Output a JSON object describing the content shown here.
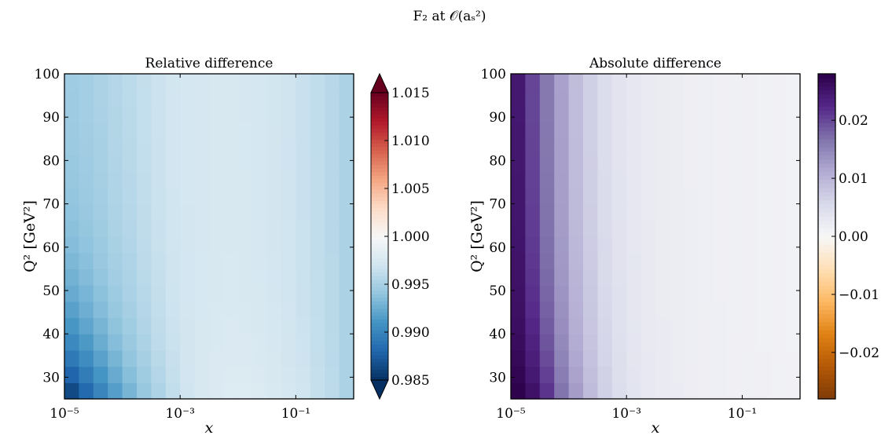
{
  "figure": {
    "suptitle": "F₂ at 𝒪(aₛ²)"
  },
  "chart_data": [
    {
      "type": "heatmap",
      "title": "Relative difference",
      "xlabel": "x",
      "ylabel": "Q² [GeV²]",
      "x_scale": "log",
      "xlim": [
        1e-05,
        1
      ],
      "ylim": [
        25,
        100
      ],
      "x_ticks": [
        {
          "value": 1e-05,
          "label": "10⁻⁵"
        },
        {
          "value": 0.001,
          "label": "10⁻³"
        },
        {
          "value": 0.1,
          "label": "10⁻¹"
        }
      ],
      "y_ticks": [
        30,
        40,
        50,
        60,
        70,
        80,
        90,
        100
      ],
      "colormap": "RdBu_r",
      "colorbar": {
        "vmin": 0.985,
        "vmax": 1.015,
        "extend": "both",
        "ticks": [
          "0.985",
          "0.990",
          "0.995",
          "1.000",
          "1.005",
          "1.010",
          "1.015"
        ]
      },
      "grid": {
        "x_log_edges": [
          -5,
          -4.75,
          -4.5,
          -4.25,
          -4,
          -3.75,
          -3.5,
          -3.25,
          -3,
          -2.75,
          -2.5,
          -2.25,
          -2,
          -1.75,
          -1.5,
          -1.25,
          -1,
          -0.75,
          -0.5,
          -0.25,
          0
        ],
        "y_edges": [
          25,
          28.75,
          32.5,
          36.25,
          40,
          43.75,
          47.5,
          51.25,
          55,
          58.75,
          62.5,
          66.25,
          70,
          73.75,
          77.5,
          81.25,
          85,
          88.75,
          92.5,
          96.25,
          100
        ],
        "values_low_q": [
          0.9855,
          0.9875,
          0.9895,
          0.9912,
          0.9927,
          0.994,
          0.9952,
          0.9962,
          0.997,
          0.9975,
          0.9978,
          0.998,
          0.998,
          0.9979,
          0.9977,
          0.9974,
          0.997,
          0.9965,
          0.996,
          0.9952
        ],
        "values_high_q": [
          0.9948,
          0.995,
          0.9953,
          0.9957,
          0.996,
          0.9964,
          0.9968,
          0.9971,
          0.9973,
          0.9974,
          0.9975,
          0.9975,
          0.9974,
          0.9973,
          0.9971,
          0.9969,
          0.9966,
          0.9962,
          0.9958,
          0.9952
        ],
        "q_transition_decay": 18
      }
    },
    {
      "type": "heatmap",
      "title": "Absolute difference",
      "xlabel": "x",
      "ylabel": "Q² [GeV²]",
      "x_scale": "log",
      "xlim": [
        1e-05,
        1
      ],
      "ylim": [
        25,
        100
      ],
      "x_ticks": [
        {
          "value": 1e-05,
          "label": "10⁻⁵"
        },
        {
          "value": 0.001,
          "label": "10⁻³"
        },
        {
          "value": 0.1,
          "label": "10⁻¹"
        }
      ],
      "y_ticks": [
        30,
        40,
        50,
        60,
        70,
        80,
        90,
        100
      ],
      "colormap": "PuOr",
      "colorbar": {
        "vmin": -0.028,
        "vmax": 0.028,
        "extend": "neither",
        "ticks": [
          "−0.02",
          "−0.01",
          "0.00",
          "0.01",
          "0.02"
        ],
        "tick_values": [
          -0.02,
          -0.01,
          0.0,
          0.01,
          0.02
        ]
      },
      "grid": {
        "x_log_edges": [
          -5,
          -4.75,
          -4.5,
          -4.25,
          -4,
          -3.75,
          -3.5,
          -3.25,
          -3,
          -2.75,
          -2.5,
          -2.25,
          -2,
          -1.75,
          -1.5,
          -1.25,
          -1,
          -0.75,
          -0.5,
          -0.25,
          0
        ],
        "y_edges": [
          25,
          28.75,
          32.5,
          36.25,
          40,
          43.75,
          47.5,
          51.25,
          55,
          58.75,
          62.5,
          66.25,
          70,
          73.75,
          77.5,
          81.25,
          85,
          88.75,
          92.5,
          96.25,
          100
        ],
        "values_low_q": [
          0.028,
          0.026,
          0.022,
          0.017,
          0.013,
          0.0095,
          0.007,
          0.005,
          0.0038,
          0.003,
          0.0025,
          0.0021,
          0.0019,
          0.0017,
          0.0016,
          0.0015,
          0.0014,
          0.0013,
          0.0012,
          0.0011
        ],
        "values_high_q": [
          0.0245,
          0.02,
          0.016,
          0.012,
          0.009,
          0.0068,
          0.005,
          0.0038,
          0.003,
          0.0025,
          0.0021,
          0.0019,
          0.0017,
          0.0016,
          0.0015,
          0.0014,
          0.0013,
          0.0012,
          0.0011,
          0.001
        ],
        "q_transition_decay": 20
      }
    }
  ]
}
